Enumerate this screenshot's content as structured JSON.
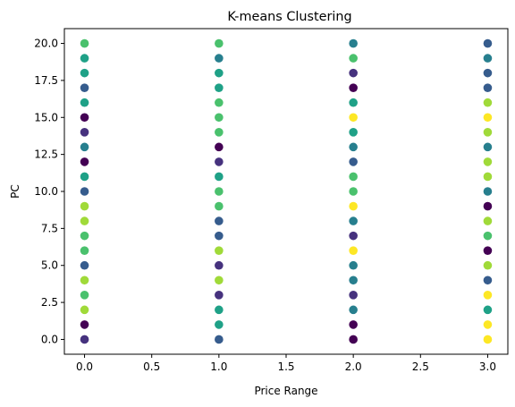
{
  "chart_data": {
    "type": "scatter",
    "title": "K-means Clustering",
    "xlabel": "Price Range",
    "ylabel": "PC",
    "xlim": [
      -0.15,
      3.15
    ],
    "ylim": [
      -1.0,
      21.0
    ],
    "xticks": [
      0.0,
      0.5,
      1.0,
      1.5,
      2.0,
      2.5,
      3.0
    ],
    "xtick_labels": [
      "0.0",
      "0.5",
      "1.0",
      "1.5",
      "2.0",
      "2.5",
      "3.0"
    ],
    "yticks": [
      0.0,
      2.5,
      5.0,
      7.5,
      10.0,
      12.5,
      15.0,
      17.5,
      20.0
    ],
    "ytick_labels": [
      "0.0",
      "2.5",
      "5.0",
      "7.5",
      "10.0",
      "12.5",
      "15.0",
      "17.5",
      "20.0"
    ],
    "grid": false,
    "colormap": "viridis",
    "palette": [
      "#440154",
      "#46327e",
      "#365c8d",
      "#277f8e",
      "#1fa187",
      "#4ac16d",
      "#a0da39",
      "#fde725"
    ],
    "points": [
      {
        "x": 0,
        "y": 0,
        "c": 1
      },
      {
        "x": 0,
        "y": 1,
        "c": 0
      },
      {
        "x": 0,
        "y": 2,
        "c": 6
      },
      {
        "x": 0,
        "y": 3,
        "c": 5
      },
      {
        "x": 0,
        "y": 4,
        "c": 6
      },
      {
        "x": 0,
        "y": 5,
        "c": 2
      },
      {
        "x": 0,
        "y": 6,
        "c": 5
      },
      {
        "x": 0,
        "y": 7,
        "c": 5
      },
      {
        "x": 0,
        "y": 8,
        "c": 6
      },
      {
        "x": 0,
        "y": 9,
        "c": 6
      },
      {
        "x": 0,
        "y": 10,
        "c": 2
      },
      {
        "x": 0,
        "y": 11,
        "c": 4
      },
      {
        "x": 0,
        "y": 12,
        "c": 0
      },
      {
        "x": 0,
        "y": 13,
        "c": 3
      },
      {
        "x": 0,
        "y": 14,
        "c": 1
      },
      {
        "x": 0,
        "y": 15,
        "c": 0
      },
      {
        "x": 0,
        "y": 16,
        "c": 4
      },
      {
        "x": 0,
        "y": 17,
        "c": 2
      },
      {
        "x": 0,
        "y": 18,
        "c": 4
      },
      {
        "x": 0,
        "y": 19,
        "c": 4
      },
      {
        "x": 0,
        "y": 20,
        "c": 5
      },
      {
        "x": 1,
        "y": 0,
        "c": 2
      },
      {
        "x": 1,
        "y": 1,
        "c": 4
      },
      {
        "x": 1,
        "y": 2,
        "c": 4
      },
      {
        "x": 1,
        "y": 3,
        "c": 1
      },
      {
        "x": 1,
        "y": 4,
        "c": 6
      },
      {
        "x": 1,
        "y": 5,
        "c": 1
      },
      {
        "x": 1,
        "y": 6,
        "c": 6
      },
      {
        "x": 1,
        "y": 7,
        "c": 2
      },
      {
        "x": 1,
        "y": 8,
        "c": 2
      },
      {
        "x": 1,
        "y": 9,
        "c": 5
      },
      {
        "x": 1,
        "y": 10,
        "c": 5
      },
      {
        "x": 1,
        "y": 11,
        "c": 4
      },
      {
        "x": 1,
        "y": 12,
        "c": 1
      },
      {
        "x": 1,
        "y": 13,
        "c": 0
      },
      {
        "x": 1,
        "y": 14,
        "c": 5
      },
      {
        "x": 1,
        "y": 15,
        "c": 5
      },
      {
        "x": 1,
        "y": 16,
        "c": 5
      },
      {
        "x": 1,
        "y": 17,
        "c": 4
      },
      {
        "x": 1,
        "y": 18,
        "c": 4
      },
      {
        "x": 1,
        "y": 19,
        "c": 3
      },
      {
        "x": 1,
        "y": 20,
        "c": 5
      },
      {
        "x": 2,
        "y": 0,
        "c": 0
      },
      {
        "x": 2,
        "y": 1,
        "c": 0
      },
      {
        "x": 2,
        "y": 2,
        "c": 3
      },
      {
        "x": 2,
        "y": 3,
        "c": 1
      },
      {
        "x": 2,
        "y": 4,
        "c": 3
      },
      {
        "x": 2,
        "y": 5,
        "c": 3
      },
      {
        "x": 2,
        "y": 6,
        "c": 7
      },
      {
        "x": 2,
        "y": 7,
        "c": 1
      },
      {
        "x": 2,
        "y": 8,
        "c": 3
      },
      {
        "x": 2,
        "y": 9,
        "c": 7
      },
      {
        "x": 2,
        "y": 10,
        "c": 5
      },
      {
        "x": 2,
        "y": 11,
        "c": 5
      },
      {
        "x": 2,
        "y": 12,
        "c": 2
      },
      {
        "x": 2,
        "y": 13,
        "c": 3
      },
      {
        "x": 2,
        "y": 14,
        "c": 4
      },
      {
        "x": 2,
        "y": 15,
        "c": 7
      },
      {
        "x": 2,
        "y": 16,
        "c": 4
      },
      {
        "x": 2,
        "y": 17,
        "c": 0
      },
      {
        "x": 2,
        "y": 18,
        "c": 1
      },
      {
        "x": 2,
        "y": 19,
        "c": 5
      },
      {
        "x": 2,
        "y": 20,
        "c": 3
      },
      {
        "x": 3,
        "y": 0,
        "c": 7
      },
      {
        "x": 3,
        "y": 1,
        "c": 7
      },
      {
        "x": 3,
        "y": 2,
        "c": 4
      },
      {
        "x": 3,
        "y": 3,
        "c": 7
      },
      {
        "x": 3,
        "y": 4,
        "c": 2
      },
      {
        "x": 3,
        "y": 5,
        "c": 6
      },
      {
        "x": 3,
        "y": 6,
        "c": 0
      },
      {
        "x": 3,
        "y": 7,
        "c": 5
      },
      {
        "x": 3,
        "y": 8,
        "c": 6
      },
      {
        "x": 3,
        "y": 9,
        "c": 0
      },
      {
        "x": 3,
        "y": 10,
        "c": 3
      },
      {
        "x": 3,
        "y": 11,
        "c": 6
      },
      {
        "x": 3,
        "y": 12,
        "c": 6
      },
      {
        "x": 3,
        "y": 13,
        "c": 3
      },
      {
        "x": 3,
        "y": 14,
        "c": 6
      },
      {
        "x": 3,
        "y": 15,
        "c": 7
      },
      {
        "x": 3,
        "y": 16,
        "c": 6
      },
      {
        "x": 3,
        "y": 17,
        "c": 2
      },
      {
        "x": 3,
        "y": 18,
        "c": 2
      },
      {
        "x": 3,
        "y": 19,
        "c": 3
      },
      {
        "x": 3,
        "y": 20,
        "c": 2
      }
    ]
  }
}
